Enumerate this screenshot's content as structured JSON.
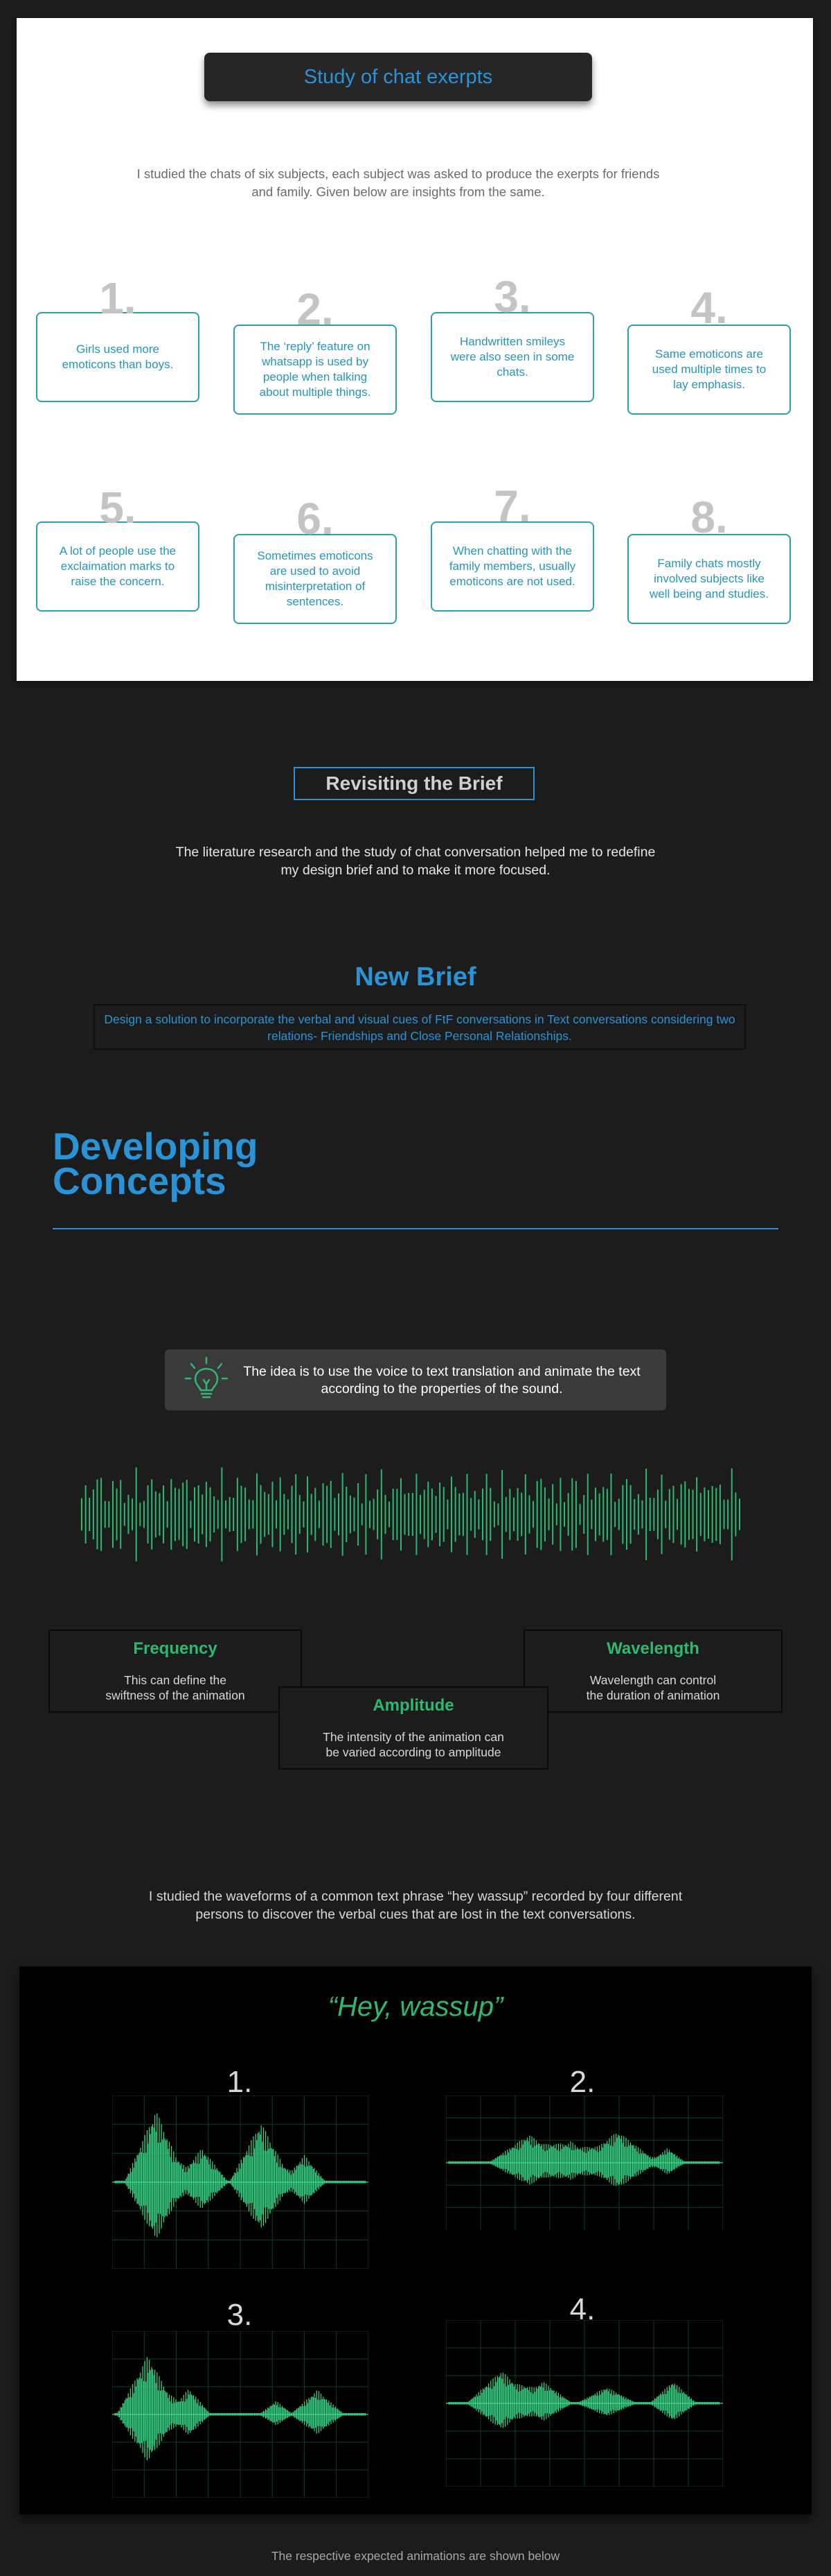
{
  "chat_study": {
    "title": "Study of chat exerpts",
    "intro": "I studied the chats of six subjects, each subject was asked to produce the exerpts for friends and family. Given below are insights from the same.",
    "insights": [
      {
        "num": "1.",
        "text": "Girls used more emoticons than boys."
      },
      {
        "num": "2.",
        "text": "The ‘reply’ feature on whatsapp is used by people when talking about multiple things."
      },
      {
        "num": "3.",
        "text": "Handwritten smileys were also seen in some chats."
      },
      {
        "num": "4.",
        "text": "Same emoticons are used multiple times to lay emphasis."
      },
      {
        "num": "5.",
        "text": "A lot of people use the exclaimation marks to raise the concern."
      },
      {
        "num": "6.",
        "text": "Sometimes emoticons are used to avoid misinterpretation of sentences."
      },
      {
        "num": "7.",
        "text": "When chatting with the family members, usually emoticons are not used."
      },
      {
        "num": "8.",
        "text": "Family chats mostly involved subjects like well being and studies."
      }
    ]
  },
  "revisit": {
    "title": "Revisiting the Brief",
    "text": "The literature research and the study of chat conversation helped me to redefine my design brief and to make it more focused."
  },
  "new_brief": {
    "title": "New Brief",
    "text": "Design a solution to incorporate the verbal and visual cues of FtF conversations in Text conversations considering two relations- Friendships and Close Personal Relationships."
  },
  "developing": {
    "title_line1": "Developing",
    "title_line2": "Concepts",
    "idea_icon": "lightbulb-icon",
    "idea_text": "The idea is to use the voice to text translation and animate the text according to the properties of the sound.",
    "features": [
      {
        "title": "Frequency",
        "desc": "This can define the swiftness of the animation"
      },
      {
        "title": "Amplitude",
        "desc": "The intensity of the animation can be varied according to amplitude"
      },
      {
        "title": "Wavelength",
        "desc": "Wavelength can control the duration of animation"
      }
    ]
  },
  "waveform_study": {
    "text": "I studied the waveforms of a common text phrase “hey wassup” recorded by four different persons to discover the verbal cues that are lost in the text conversations.",
    "phrase": "“Hey, wassup”",
    "labels": [
      "1.",
      "2.",
      "3.",
      "4."
    ]
  },
  "footer": "The respective expected animations are shown below",
  "colors": {
    "accent_blue": "#2a93d5",
    "accent_teal": "#2aa0a8",
    "accent_green": "#2fb870",
    "background": "#1c1c1c"
  }
}
